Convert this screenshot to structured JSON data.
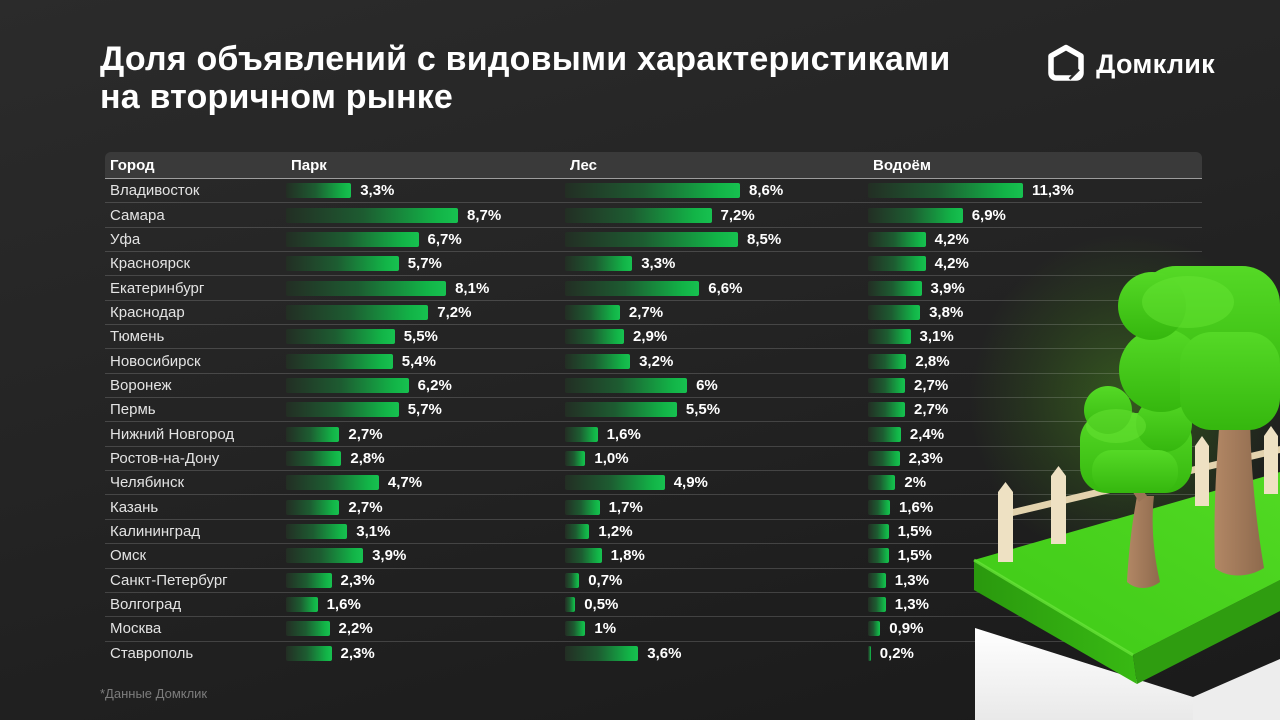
{
  "title": {
    "line1": "Доля объявлений с видовыми характеристиками",
    "line2": "на вторичном рынке"
  },
  "brand": {
    "name": "Домклик"
  },
  "footnote": "*Данные Домклик",
  "colors": {
    "bar_green": "#12b447",
    "background": "#242424",
    "header_row": "#3a3a3a",
    "lawn_green": "#43cb1c"
  },
  "chart_data": {
    "type": "bar",
    "title": "Доля объявлений с видовыми характеристиками на вторичном рынке",
    "unit": "%",
    "legend_position": "none",
    "grid": false,
    "columns": [
      "Город",
      "Парк",
      "Лес",
      "Водоём"
    ],
    "series_names": [
      "Парк",
      "Лес",
      "Водоём"
    ],
    "rows": [
      {
        "city": "Владивосток",
        "values": [
          3.3,
          8.6,
          11.3
        ],
        "labels": [
          "3,3%",
          "8,6%",
          "11,3%"
        ]
      },
      {
        "city": "Самара",
        "values": [
          8.7,
          7.2,
          6.9
        ],
        "labels": [
          "8,7%",
          "7,2%",
          "6,9%"
        ]
      },
      {
        "city": "Уфа",
        "values": [
          6.7,
          8.5,
          4.2
        ],
        "labels": [
          "6,7%",
          "8,5%",
          "4,2%"
        ]
      },
      {
        "city": "Красноярск",
        "values": [
          5.7,
          3.3,
          4.2
        ],
        "labels": [
          "5,7%",
          "3,3%",
          "4,2%"
        ]
      },
      {
        "city": "Екатеринбург",
        "values": [
          8.1,
          6.6,
          3.9
        ],
        "labels": [
          "8,1%",
          "6,6%",
          "3,9%"
        ]
      },
      {
        "city": "Краснодар",
        "values": [
          7.2,
          2.7,
          3.8
        ],
        "labels": [
          "7,2%",
          "2,7%",
          "3,8%"
        ]
      },
      {
        "city": "Тюмень",
        "values": [
          5.5,
          2.9,
          3.1
        ],
        "labels": [
          "5,5%",
          "2,9%",
          "3,1%"
        ]
      },
      {
        "city": "Новосибирск",
        "values": [
          5.4,
          3.2,
          2.8
        ],
        "labels": [
          "5,4%",
          "3,2%",
          "2,8%"
        ]
      },
      {
        "city": "Воронеж",
        "values": [
          6.2,
          6.0,
          2.7
        ],
        "labels": [
          "6,2%",
          "6%",
          "2,7%"
        ]
      },
      {
        "city": "Пермь",
        "values": [
          5.7,
          5.5,
          2.7
        ],
        "labels": [
          "5,7%",
          "5,5%",
          "2,7%"
        ]
      },
      {
        "city": "Нижний Новгород",
        "values": [
          2.7,
          1.6,
          2.4
        ],
        "labels": [
          "2,7%",
          "1,6%",
          "2,4%"
        ]
      },
      {
        "city": "Ростов-на-Дону",
        "values": [
          2.8,
          1.0,
          2.3
        ],
        "labels": [
          "2,8%",
          "1,0%",
          "2,3%"
        ]
      },
      {
        "city": "Челябинск",
        "values": [
          4.7,
          4.9,
          2.0
        ],
        "labels": [
          "4,7%",
          "4,9%",
          "2%"
        ]
      },
      {
        "city": "Казань",
        "values": [
          2.7,
          1.7,
          1.6
        ],
        "labels": [
          "2,7%",
          "1,7%",
          "1,6%"
        ]
      },
      {
        "city": "Калининград",
        "values": [
          3.1,
          1.2,
          1.5
        ],
        "labels": [
          "3,1%",
          "1,2%",
          "1,5%"
        ]
      },
      {
        "city": "Омск",
        "values": [
          3.9,
          1.8,
          1.5
        ],
        "labels": [
          "3,9%",
          "1,8%",
          "1,5%"
        ]
      },
      {
        "city": "Санкт-Петербург",
        "values": [
          2.3,
          0.7,
          1.3
        ],
        "labels": [
          "2,3%",
          "0,7%",
          "1,3%"
        ]
      },
      {
        "city": "Волгоград",
        "values": [
          1.6,
          0.5,
          1.3
        ],
        "labels": [
          "1,6%",
          "0,5%",
          "1,3%"
        ]
      },
      {
        "city": "Москва",
        "values": [
          2.2,
          1.0,
          0.9
        ],
        "labels": [
          "2,2%",
          "1%",
          "0,9%"
        ]
      },
      {
        "city": "Ставрополь",
        "values": [
          2.3,
          3.6,
          0.2
        ],
        "labels": [
          "2,3%",
          "3,6%",
          "0,2%"
        ]
      }
    ]
  }
}
